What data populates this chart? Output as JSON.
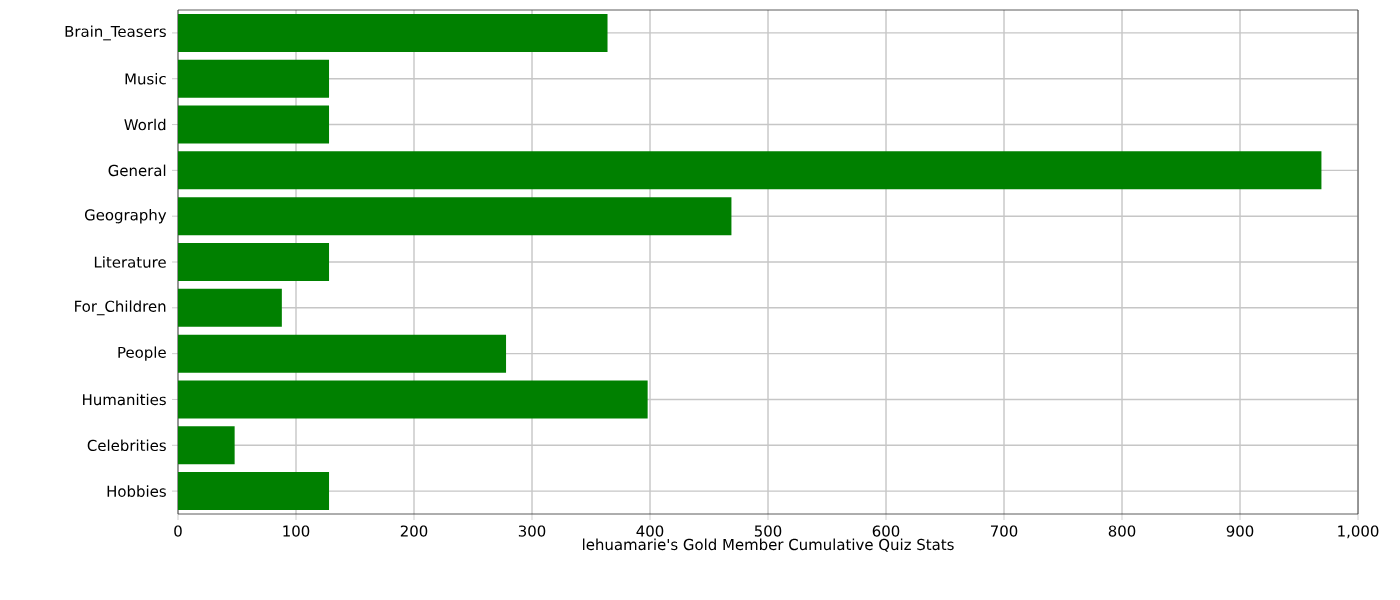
{
  "chart_data": {
    "type": "bar",
    "orientation": "horizontal",
    "xlabel": "lehuamarie's Gold Member Cumulative Quiz Stats",
    "categories": [
      "Brain_Teasers",
      "Music",
      "World",
      "General",
      "Geography",
      "Literature",
      "For_Children",
      "People",
      "Humanities",
      "Celebrities",
      "Hobbies"
    ],
    "values": [
      364,
      128,
      128,
      969,
      469,
      128,
      88,
      278,
      398,
      48,
      128
    ],
    "color": "#008000",
    "xlim": [
      0,
      1000
    ],
    "xticks": [
      0,
      100,
      200,
      300,
      400,
      500,
      600,
      700,
      800,
      900,
      {
        "value": 1000,
        "label": "1,000"
      }
    ],
    "grid": true
  }
}
